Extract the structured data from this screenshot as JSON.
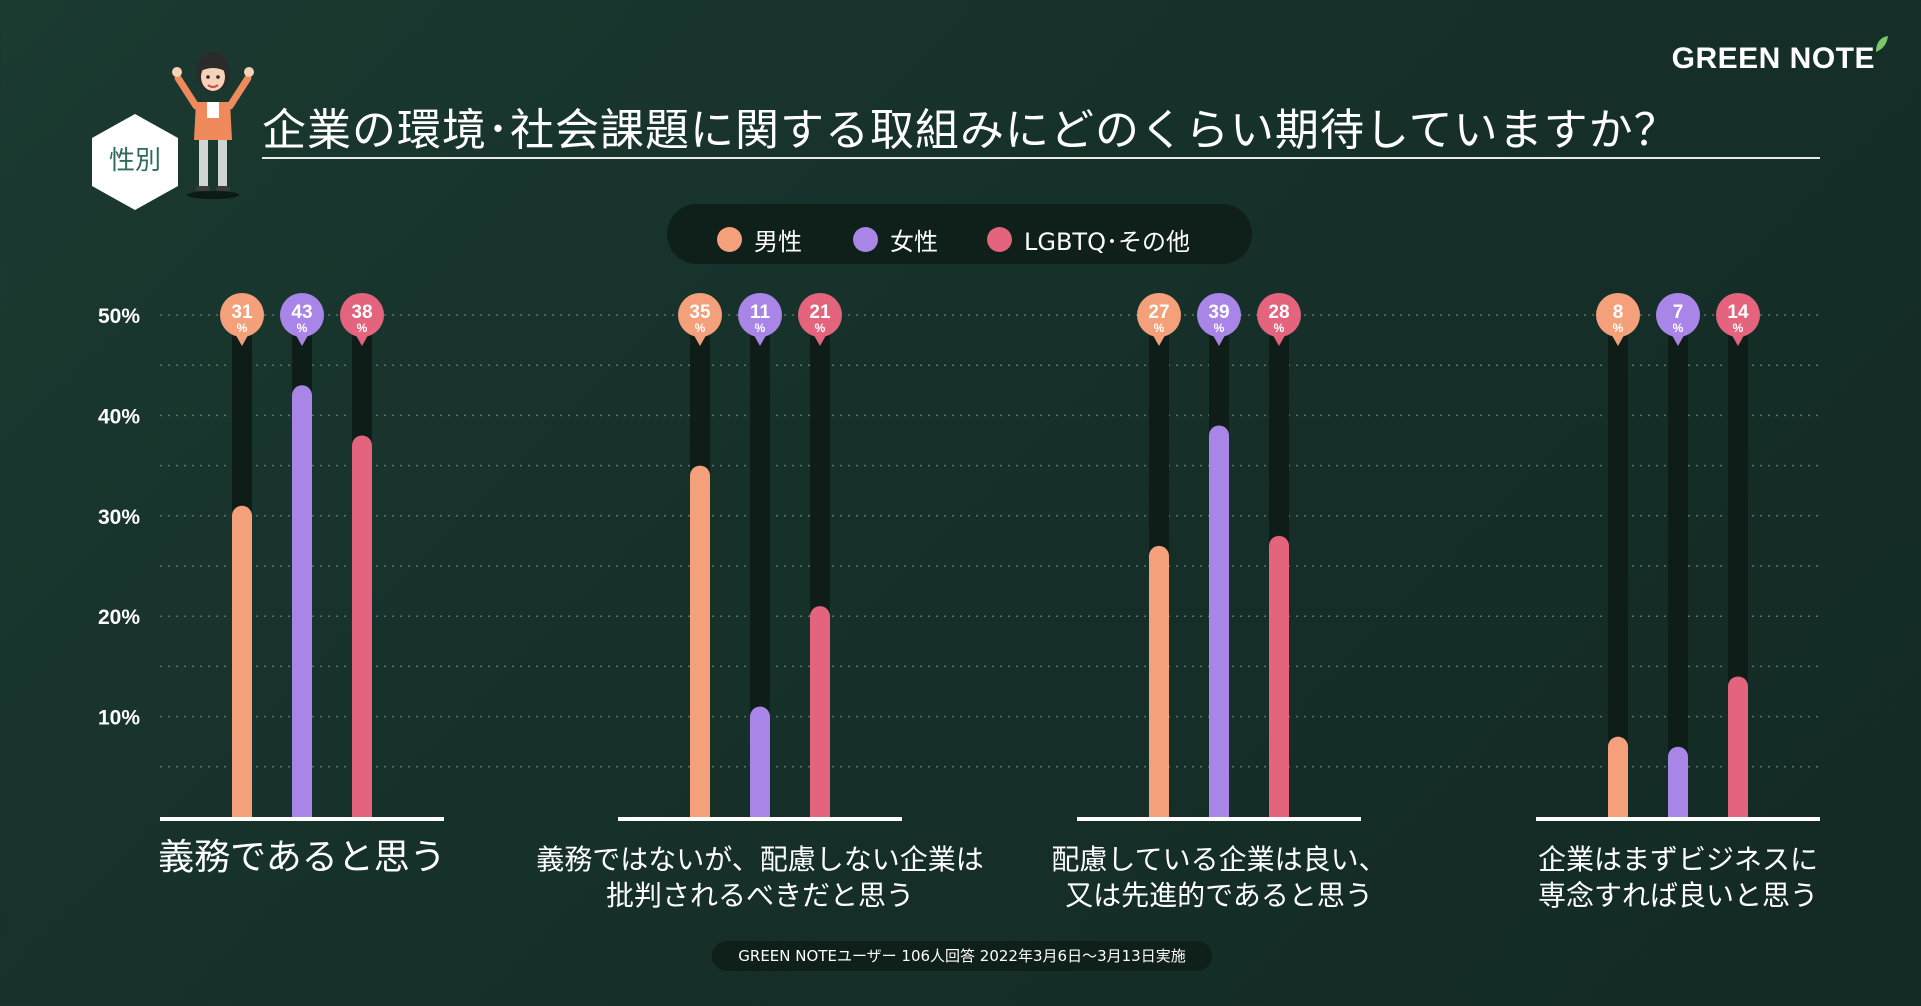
{
  "brand": "GREEN NOTE",
  "badge": "性別",
  "colors": {
    "male": "#f4a07a",
    "female": "#a985e8",
    "other": "#e4647e",
    "track": "#0f1d18",
    "grid": "#5d7469"
  },
  "chart_data": {
    "type": "bar",
    "title": "企業の環境･社会課題に関する取組みにどのくらい期待していますか？",
    "ylim": [
      0,
      50
    ],
    "yticks": [
      "10%",
      "20%",
      "30%",
      "40%",
      "50%"
    ],
    "grid": true,
    "legend_position": "top",
    "categories": [
      "義務であると思う",
      "義務ではないが、配慮しない企業は批判されるべきだと思う",
      "配慮している企業は良い、又は先進的であると思う",
      "企業はまずビジネスに専念すれば良いと思う"
    ],
    "category_lines": [
      [
        "義務であると思う"
      ],
      [
        "義務ではないが、配慮しない企業は",
        "批判されるべきだと思う"
      ],
      [
        "配慮している企業は良い、",
        "又は先進的であると思う"
      ],
      [
        "企業はまずビジネスに",
        "専念すれば良いと思う"
      ]
    ],
    "series": [
      {
        "name": "男性",
        "values": [
          31,
          35,
          27,
          8
        ]
      },
      {
        "name": "女性",
        "values": [
          43,
          11,
          39,
          7
        ]
      },
      {
        "name": "LGBTQ･その他",
        "values": [
          38,
          21,
          28,
          14
        ]
      }
    ],
    "value_unit": "%"
  },
  "footer": "GREEN NOTEユーザー 106人回答 2022年3月6日〜3月13日実施"
}
